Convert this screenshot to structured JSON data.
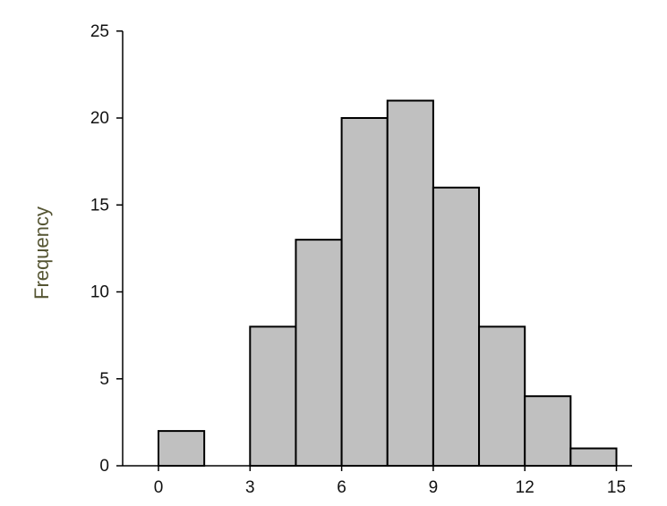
{
  "chart_data": {
    "type": "bar",
    "title": "",
    "xlabel": "",
    "ylabel": "Frequency",
    "bin_width": 1.5,
    "bars": [
      {
        "x0": 0,
        "x1": 1.5,
        "value": 2
      },
      {
        "x0": 1.5,
        "x1": 3,
        "value": 0
      },
      {
        "x0": 3,
        "x1": 4.5,
        "value": 8
      },
      {
        "x0": 4.5,
        "x1": 6,
        "value": 13
      },
      {
        "x0": 6,
        "x1": 7.5,
        "value": 20
      },
      {
        "x0": 7.5,
        "x1": 9,
        "value": 21
      },
      {
        "x0": 9,
        "x1": 10.5,
        "value": 16
      },
      {
        "x0": 10.5,
        "x1": 12,
        "value": 8
      },
      {
        "x0": 12,
        "x1": 13.5,
        "value": 4
      },
      {
        "x0": 13.5,
        "x1": 15,
        "value": 1
      }
    ],
    "x_ticks": [
      "0",
      "3",
      "6",
      "9",
      "12",
      "15"
    ],
    "y_ticks": [
      "0",
      "5",
      "10",
      "15",
      "20",
      "25"
    ],
    "xlim": [
      -1,
      16
    ],
    "ylim": [
      0,
      25
    ],
    "grid": false,
    "colors": {
      "bar_fill": "#c0c0c0",
      "bar_stroke": "#000000",
      "axis": "#000000"
    }
  }
}
